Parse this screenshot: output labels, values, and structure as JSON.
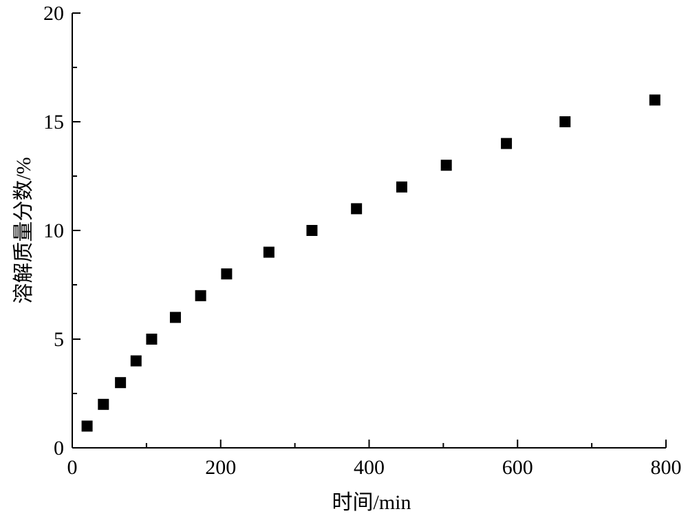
{
  "chart_data": {
    "type": "line",
    "x_label": "时间/min",
    "y_label": "溶解质量分数/%",
    "series": [
      {
        "color": "#000000",
        "x": [
          20,
          42,
          65,
          86,
          107,
          139,
          173,
          208,
          265,
          323,
          383,
          444,
          504,
          585,
          664,
          785
        ],
        "values": [
          1,
          2,
          3,
          4,
          5,
          6,
          7,
          8,
          9,
          10,
          11,
          12,
          13,
          14,
          15,
          16
        ]
      }
    ],
    "xlim": [
      0,
      800
    ],
    "xticks": [
      0,
      200,
      400,
      600,
      800
    ],
    "xminorticks": [
      100,
      300,
      500,
      700
    ],
    "ylim": [
      0,
      20
    ],
    "yticks": [
      0,
      5,
      10,
      15,
      20
    ],
    "yminorticks": [
      2.5,
      7.5,
      12.5,
      17.5
    ],
    "grid": false,
    "marker": "square"
  }
}
